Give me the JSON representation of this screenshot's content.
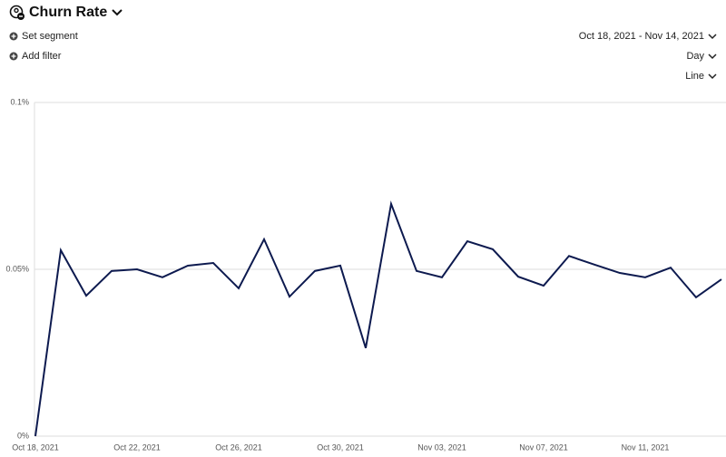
{
  "chart_data": {
    "type": "line",
    "title": "Churn Rate",
    "categories": [
      "Oct 18, 2021",
      null,
      null,
      null,
      "Oct 22, 2021",
      null,
      null,
      null,
      "Oct 26, 2021",
      null,
      null,
      null,
      "Oct 30, 2021",
      null,
      null,
      null,
      "Nov 03, 2021",
      null,
      null,
      null,
      "Nov 07, 2021",
      null,
      null,
      null,
      "Nov 11, 2021",
      null,
      null,
      null
    ],
    "series": [
      {
        "name": "Churn Rate",
        "color": "#0d1a4f",
        "values": [
          0,
          0.0557,
          0.0421,
          0.0495,
          0.05,
          0.0476,
          0.0511,
          0.0519,
          0.0443,
          0.059,
          0.0418,
          0.0495,
          0.0511,
          0.0264,
          0.0696,
          0.0495,
          0.0476,
          0.0584,
          0.056,
          0.0478,
          0.0451,
          0.054,
          0.0514,
          0.0489,
          0.0476,
          0.0505,
          0.0416,
          0.047
        ]
      }
    ],
    "ylim": [
      0,
      0.1
    ],
    "yticks": [
      {
        "value": 0,
        "label": "0%"
      },
      {
        "value": 0.05,
        "label": "0.05%"
      },
      {
        "value": 0.1,
        "label": "0.1%"
      }
    ],
    "grid": true
  },
  "controls": {
    "segment": "Set segment",
    "filter": "Add filter",
    "date_range": "Oct 18, 2021 - Nov 14, 2021",
    "interval": "Day",
    "chart_type": "Line"
  }
}
